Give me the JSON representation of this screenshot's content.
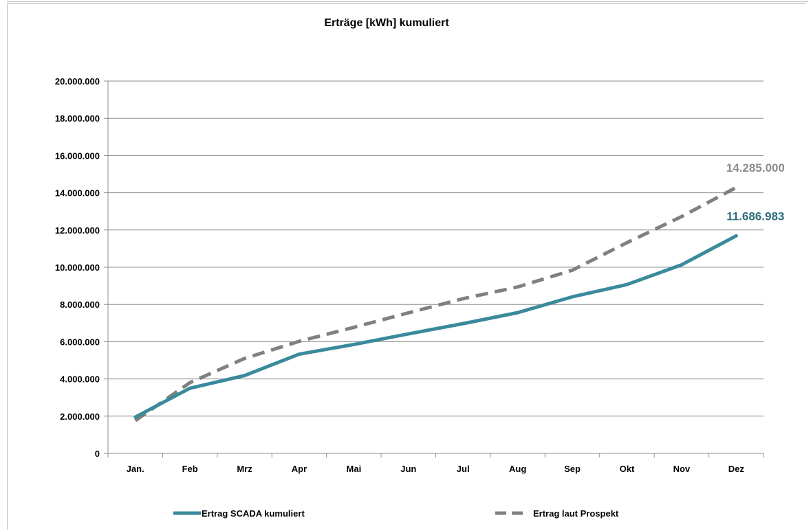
{
  "chart_data": {
    "type": "line",
    "title": "Erträge [kWh] kumuliert",
    "xlabel": "",
    "ylabel": "",
    "categories": [
      "Jan.",
      "Feb",
      "Mrz",
      "Apr",
      "Mai",
      "Jun",
      "Jul",
      "Aug",
      "Sep",
      "Okt",
      "Nov",
      "Dez"
    ],
    "ylim": [
      0,
      20000000
    ],
    "ytick_values": [
      0,
      2000000,
      4000000,
      6000000,
      8000000,
      10000000,
      12000000,
      14000000,
      16000000,
      18000000,
      20000000
    ],
    "ytick_labels": [
      "0",
      "2.000.000",
      "4.000.000",
      "6.000.000",
      "8.000.000",
      "10.000.000",
      "12.000.000",
      "14.000.000",
      "16.000.000",
      "18.000.000",
      "20.000.000"
    ],
    "grid": true,
    "legend_position": "bottom",
    "series": [
      {
        "name": "Ertrag SCADA kumuliert",
        "color": "#3a8a9c",
        "style": "solid",
        "values": [
          1950000,
          3500000,
          4180000,
          5330000,
          5850000,
          6420000,
          6970000,
          7560000,
          8410000,
          9070000,
          10130000,
          11686983
        ],
        "end_label": "11.686.983",
        "end_label_color": "#2e6f7e"
      },
      {
        "name": "Ertrag laut Prospekt",
        "color": "#808080",
        "style": "dashed",
        "values": [
          1760000,
          3800000,
          5100000,
          6020000,
          6770000,
          7550000,
          8310000,
          8940000,
          9840000,
          11320000,
          12720000,
          14285000
        ],
        "end_label": "14.285.000",
        "end_label_color": "#8c8c8c"
      }
    ]
  }
}
